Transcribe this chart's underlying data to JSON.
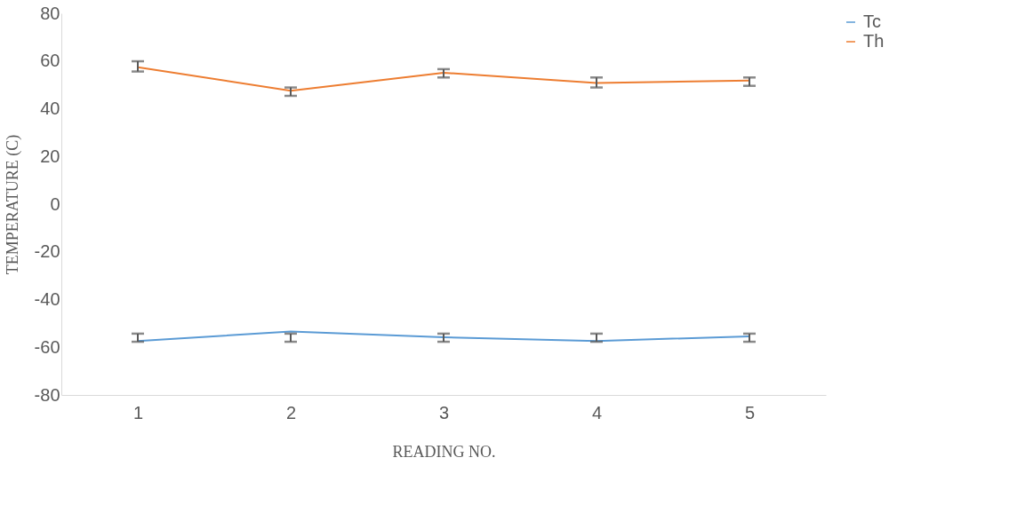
{
  "chart_data": {
    "type": "line",
    "xlabel": "READING NO.",
    "ylabel": "TEMPERATURE (C)",
    "categories": [
      "1",
      "2",
      "3",
      "4",
      "5"
    ],
    "series": [
      {
        "name": "Tc",
        "color": "#5b9bd5",
        "values": [
          -57.4,
          -53.4,
          -55.8,
          -57.4,
          -55.4
        ],
        "errors": [
          [
            -57.7,
            -54.3
          ],
          [
            -57.7,
            -54.3
          ],
          [
            -57.7,
            -54.3
          ],
          [
            -57.7,
            -54.3
          ],
          [
            -57.7,
            -54.3
          ]
        ]
      },
      {
        "name": "Th",
        "color": "#ed7d31",
        "values": [
          57.4,
          47.5,
          55.1,
          50.8,
          51.8
        ],
        "errors": [
          [
            55.6,
            59.9
          ],
          [
            45.4,
            48.9
          ],
          [
            53.1,
            56.6
          ],
          [
            48.9,
            53.1
          ],
          [
            49.6,
            53.1
          ]
        ]
      }
    ],
    "ylim": [
      -80,
      80
    ],
    "yticks": [
      -80,
      -60,
      -40,
      -20,
      0,
      20,
      40,
      60,
      80
    ],
    "grid": false,
    "legend": "right",
    "marker": "none",
    "line_style": "solid"
  }
}
